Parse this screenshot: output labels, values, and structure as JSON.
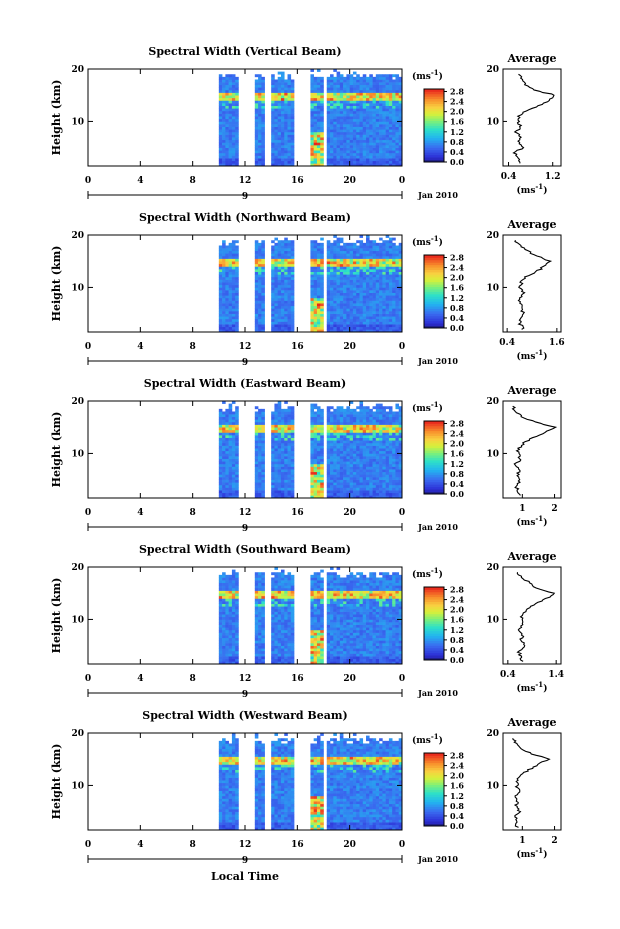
{
  "figure": {
    "xlabel": "Local Time",
    "panels": [
      {
        "title": "Spectral Width (Vertical Beam)"
      },
      {
        "title": "Spectral Width (Northward Beam)"
      },
      {
        "title": "Spectral Width (Eastward Beam)"
      },
      {
        "title": "Spectral Width (Southward Beam)"
      },
      {
        "title": "Spectral Width (Westward Beam)"
      }
    ]
  },
  "chart_data": [
    {
      "type": "heatmap",
      "title": "Spectral Width (Vertical Beam)",
      "ylabel": "Height (km)",
      "x_ticks": [
        "0",
        "4",
        "8",
        "12",
        "16",
        "20",
        "0"
      ],
      "y_ticks": [
        "10",
        "20"
      ],
      "xlim": [
        0,
        24
      ],
      "ylim": [
        1.5,
        20
      ],
      "date_left": "9",
      "date_right": "Jan 2010",
      "data_start_hour": 10,
      "data_gaps": [
        [
          11.5,
          12.6
        ],
        [
          13.3,
          13.8
        ],
        [
          15.6,
          16.8
        ],
        [
          17.8,
          18.2
        ]
      ],
      "colorbar": {
        "unit": "(ms",
        "unit_exp": "-1",
        "unit_close": ")",
        "ticks": [
          "2.8",
          "2.4",
          "2.0",
          "1.6",
          "1.2",
          "0.8",
          "0.4",
          "0.0"
        ],
        "range": [
          0,
          2.9
        ]
      },
      "average_profile": {
        "title": "Average",
        "xlabel": "(ms",
        "xlabel_exp": "-1",
        "xlabel_close": ")",
        "x_ticks": [
          "0.4",
          "1.2"
        ],
        "y_ticks": [
          "10",
          "20"
        ],
        "xlim": [
          0.3,
          1.35
        ],
        "height": [
          2,
          3,
          4,
          5,
          6,
          7,
          8,
          9,
          10,
          11,
          12,
          13,
          14,
          15,
          16,
          17,
          18,
          19
        ],
        "width": [
          0.62,
          0.55,
          0.52,
          0.65,
          0.58,
          0.6,
          0.54,
          0.62,
          0.58,
          0.6,
          0.7,
          0.95,
          1.15,
          1.25,
          0.85,
          0.7,
          0.65,
          0.58
        ]
      }
    },
    {
      "type": "heatmap",
      "title": "Spectral Width (Northward Beam)",
      "ylabel": "Height (km)",
      "x_ticks": [
        "0",
        "4",
        "8",
        "12",
        "16",
        "20",
        "0"
      ],
      "y_ticks": [
        "10",
        "20"
      ],
      "xlim": [
        0,
        24
      ],
      "ylim": [
        1.5,
        20
      ],
      "date_left": "9",
      "date_right": "Jan 2010",
      "data_start_hour": 10,
      "data_gaps": [
        [
          11.5,
          12.6
        ],
        [
          13.3,
          13.8
        ],
        [
          15.6,
          16.8
        ],
        [
          17.8,
          18.2
        ]
      ],
      "colorbar": {
        "unit": "(ms",
        "unit_exp": "-1",
        "unit_close": ")",
        "ticks": [
          "2.8",
          "2.4",
          "2.0",
          "1.6",
          "1.2",
          "0.8",
          "0.4",
          "0.0"
        ],
        "range": [
          0,
          2.9
        ]
      },
      "average_profile": {
        "title": "Average",
        "xlabel": "(ms",
        "xlabel_exp": "-1",
        "xlabel_close": ")",
        "x_ticks": [
          "0.4",
          "1.6"
        ],
        "y_ticks": [
          "10",
          "20"
        ],
        "xlim": [
          0.3,
          1.7
        ],
        "height": [
          2,
          3,
          4,
          5,
          6,
          7,
          8,
          9,
          10,
          11,
          12,
          13,
          14,
          15,
          16,
          17,
          18,
          19
        ],
        "width": [
          0.78,
          0.72,
          0.7,
          0.8,
          0.75,
          0.72,
          0.7,
          0.78,
          0.72,
          0.75,
          0.85,
          1.1,
          1.3,
          1.45,
          1.1,
          0.9,
          0.7,
          0.6
        ]
      }
    },
    {
      "type": "heatmap",
      "title": "Spectral Width (Eastward Beam)",
      "ylabel": "Height (km)",
      "x_ticks": [
        "0",
        "4",
        "8",
        "12",
        "16",
        "20",
        "0"
      ],
      "y_ticks": [
        "10",
        "20"
      ],
      "xlim": [
        0,
        24
      ],
      "ylim": [
        1.5,
        20
      ],
      "date_left": "9",
      "date_right": "Jan 2010",
      "data_start_hour": 10,
      "data_gaps": [
        [
          11.5,
          12.6
        ],
        [
          13.3,
          13.8
        ],
        [
          15.6,
          16.8
        ],
        [
          17.8,
          18.2
        ]
      ],
      "colorbar": {
        "unit": "(ms",
        "unit_exp": "-1",
        "unit_close": ")",
        "ticks": [
          "2.8",
          "2.4",
          "2.0",
          "1.6",
          "1.2",
          "0.8",
          "0.4",
          "0.0"
        ],
        "range": [
          0,
          2.9
        ]
      },
      "average_profile": {
        "title": "Average",
        "xlabel": "(ms",
        "xlabel_exp": "-1",
        "xlabel_close": ")",
        "x_ticks": [
          "1",
          "2"
        ],
        "y_ticks": [
          "10",
          "20"
        ],
        "xlim": [
          0.4,
          2.2
        ],
        "height": [
          2,
          3,
          4,
          5,
          6,
          7,
          8,
          9,
          10,
          11,
          12,
          13,
          14,
          15,
          16,
          17,
          18,
          19
        ],
        "width": [
          0.9,
          0.85,
          0.8,
          0.95,
          0.85,
          0.9,
          0.8,
          0.95,
          0.85,
          0.9,
          1.05,
          1.3,
          1.7,
          2.0,
          1.4,
          1.0,
          0.8,
          0.7
        ]
      }
    },
    {
      "type": "heatmap",
      "title": "Spectral Width (Southward Beam)",
      "ylabel": "Height (km)",
      "x_ticks": [
        "0",
        "4",
        "8",
        "12",
        "16",
        "20",
        "0"
      ],
      "y_ticks": [
        "10",
        "20"
      ],
      "xlim": [
        0,
        24
      ],
      "ylim": [
        1.5,
        20
      ],
      "date_left": "9",
      "date_right": "Jan 2010",
      "data_start_hour": 10,
      "data_gaps": [
        [
          11.5,
          12.6
        ],
        [
          13.3,
          13.8
        ],
        [
          15.6,
          16.8
        ],
        [
          17.8,
          18.2
        ]
      ],
      "colorbar": {
        "unit": "(ms",
        "unit_exp": "-1",
        "unit_close": ")",
        "ticks": [
          "2.8",
          "2.4",
          "2.0",
          "1.6",
          "1.2",
          "0.8",
          "0.4",
          "0.0"
        ],
        "range": [
          0,
          2.9
        ]
      },
      "average_profile": {
        "title": "Average",
        "xlabel": "(ms",
        "xlabel_exp": "-1",
        "xlabel_close": ")",
        "x_ticks": [
          "0.4",
          "1.4"
        ],
        "y_ticks": [
          "10",
          "20"
        ],
        "xlim": [
          0.3,
          1.5
        ],
        "height": [
          2,
          3,
          4,
          5,
          6,
          7,
          8,
          9,
          10,
          11,
          12,
          13,
          14,
          15,
          16,
          17,
          18,
          19
        ],
        "width": [
          0.72,
          0.65,
          0.62,
          0.75,
          0.68,
          0.7,
          0.62,
          0.72,
          0.68,
          0.7,
          0.8,
          1.0,
          1.2,
          1.35,
          1.0,
          0.85,
          0.7,
          0.6
        ]
      }
    },
    {
      "type": "heatmap",
      "title": "Spectral Width (Westward Beam)",
      "ylabel": "Height (km)",
      "x_ticks": [
        "0",
        "4",
        "8",
        "12",
        "16",
        "20",
        "0"
      ],
      "y_ticks": [
        "10",
        "20"
      ],
      "xlim": [
        0,
        24
      ],
      "ylim": [
        1.5,
        20
      ],
      "date_left": "9",
      "date_right": "Jan 2010",
      "data_start_hour": 10,
      "data_gaps": [
        [
          11.5,
          12.6
        ],
        [
          13.3,
          13.8
        ],
        [
          15.6,
          16.8
        ],
        [
          17.8,
          18.2
        ]
      ],
      "colorbar": {
        "unit": "(ms",
        "unit_exp": "-1",
        "unit_close": ")",
        "ticks": [
          "2.8",
          "2.4",
          "2.0",
          "1.6",
          "1.2",
          "0.8",
          "0.4",
          "0.0"
        ],
        "range": [
          0,
          2.9
        ]
      },
      "average_profile": {
        "title": "Average",
        "xlabel": "(ms",
        "xlabel_exp": "-1",
        "xlabel_close": ")",
        "x_ticks": [
          "1",
          "2"
        ],
        "y_ticks": [
          "10",
          "20"
        ],
        "xlim": [
          0.4,
          2.2
        ],
        "height": [
          2,
          3,
          4,
          5,
          6,
          7,
          8,
          9,
          10,
          11,
          12,
          13,
          14,
          15,
          16,
          17,
          18,
          19
        ],
        "width": [
          0.85,
          0.8,
          0.78,
          0.9,
          0.82,
          0.85,
          0.78,
          0.9,
          0.82,
          0.85,
          0.95,
          1.2,
          1.5,
          1.8,
          1.3,
          1.0,
          0.8,
          0.7
        ]
      }
    }
  ]
}
